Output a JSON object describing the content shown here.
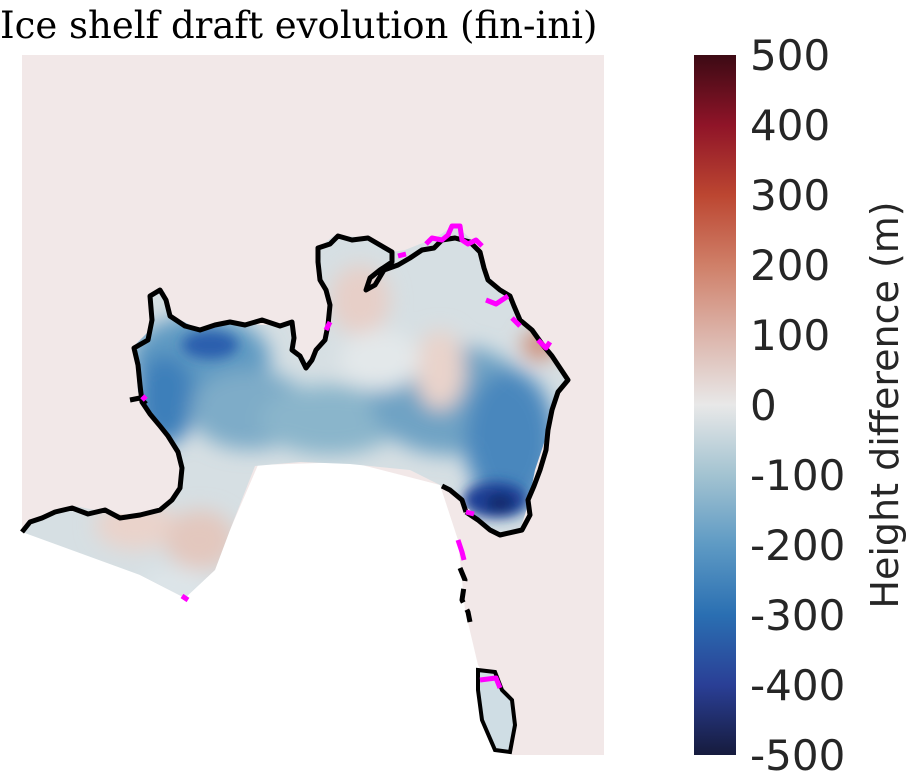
{
  "chart_data": {
    "type": "heatmap",
    "title": "Ice shelf draft evolution (fin-ini)",
    "colorbar": {
      "label": "Height difference (m)",
      "range": [
        -500,
        500
      ],
      "ticks": [
        "500",
        "400",
        "300",
        "200",
        "100",
        "0",
        "-100",
        "-200",
        "-300",
        "-400",
        "-500"
      ],
      "tick_values": [
        500,
        400,
        300,
        200,
        100,
        0,
        -100,
        -200,
        -300,
        -400,
        -500
      ],
      "colormap": [
        "#161b3d",
        "#2a3f96",
        "#2a6fb2",
        "#5e9ac4",
        "#a3c3d1",
        "#e8e8e8",
        "#dcb4aa",
        "#cf7f68",
        "#bc4631",
        "#8f1428",
        "#3c0a14"
      ]
    },
    "map": {
      "background_color": "#f2e8e8",
      "grounding_line_color": "#000000",
      "ice_front_color": "#ff00ff"
    }
  }
}
